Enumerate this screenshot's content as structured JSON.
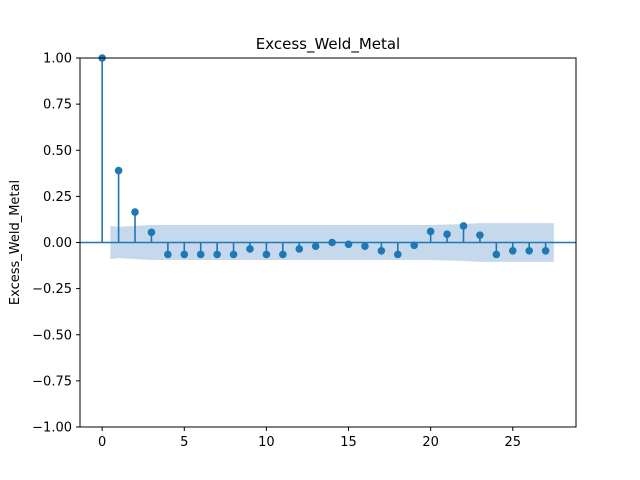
{
  "chart_data": {
    "type": "scatter",
    "subtype": "autocorrelation-stem",
    "title": "Excess_Weld_Metal",
    "xlabel": "",
    "ylabel": "Excess_Weld_Metal",
    "xlim": [
      -1.35,
      28.85
    ],
    "ylim": [
      -1.0,
      1.0
    ],
    "xticks": [
      0,
      5,
      10,
      15,
      20,
      25
    ],
    "yticks": [
      -1.0,
      -0.75,
      -0.5,
      -0.25,
      0.0,
      0.25,
      0.5,
      0.75,
      1.0
    ],
    "ytick_labels": [
      "−1.00",
      "−0.75",
      "−0.50",
      "−0.25",
      "0.00",
      "0.25",
      "0.50",
      "0.75",
      "1.00"
    ],
    "xtick_labels": [
      "0",
      "5",
      "10",
      "15",
      "20",
      "25"
    ],
    "lags": [
      0,
      1,
      2,
      3,
      4,
      5,
      6,
      7,
      8,
      9,
      10,
      11,
      12,
      13,
      14,
      15,
      16,
      17,
      18,
      19,
      20,
      21,
      22,
      23,
      24,
      25,
      26,
      27
    ],
    "values": [
      1.0,
      0.39,
      0.165,
      0.055,
      -0.065,
      -0.065,
      -0.065,
      -0.065,
      -0.065,
      -0.035,
      -0.065,
      -0.065,
      -0.035,
      -0.02,
      0.0,
      -0.01,
      -0.02,
      -0.045,
      -0.065,
      -0.015,
      0.06,
      0.045,
      0.09,
      0.04,
      -0.065,
      -0.045,
      -0.045,
      -0.045
    ],
    "confidence_band": {
      "lags": [
        0.5,
        1,
        2,
        3,
        4,
        5,
        10,
        15,
        20,
        22,
        23,
        27.5
      ],
      "upper": [
        0.09,
        0.085,
        0.09,
        0.095,
        0.095,
        0.095,
        0.095,
        0.095,
        0.095,
        0.1,
        0.105,
        0.105
      ],
      "lower": [
        -0.09,
        -0.085,
        -0.09,
        -0.095,
        -0.095,
        -0.095,
        -0.095,
        -0.095,
        -0.095,
        -0.1,
        -0.105,
        -0.105
      ]
    },
    "zero_line": true,
    "grid": false,
    "colors": {
      "stem": "#1f77b4",
      "band": "#c6d9ec",
      "axis": "#000000"
    }
  }
}
